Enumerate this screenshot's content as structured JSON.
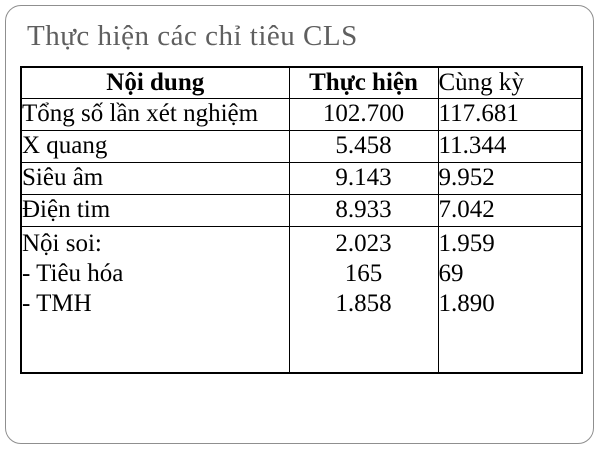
{
  "slide": {
    "title": "Thực hiện các chỉ tiêu CLS"
  },
  "table": {
    "headers": {
      "noi_dung": "Nội dung",
      "thuc_hien": "Thực hiện",
      "cung_ky": "Cùng kỳ"
    },
    "rows": [
      {
        "label": "Tổng số lần xét nghiệm",
        "thuc_hien": "102.700",
        "cung_ky": "117.681"
      },
      {
        "label": "X quang",
        "thuc_hien": "5.458",
        "cung_ky": "11.344"
      },
      {
        "label": "Siêu âm",
        "thuc_hien": "9.143",
        "cung_ky": "9.952"
      },
      {
        "label": "Điện tim",
        "thuc_hien": "8.933",
        "cung_ky": "7.042"
      },
      {
        "label": "Nội soi:\n- Tiêu hóa\n- TMH",
        "thuc_hien": "2.023\n165\n1.858",
        "cung_ky": "1.959\n69\n1.890"
      }
    ]
  },
  "colors": {
    "title": "#5f5f5f",
    "table_border": "#000000",
    "frame_border": "#8f8f8f",
    "background": "#ffffff"
  }
}
